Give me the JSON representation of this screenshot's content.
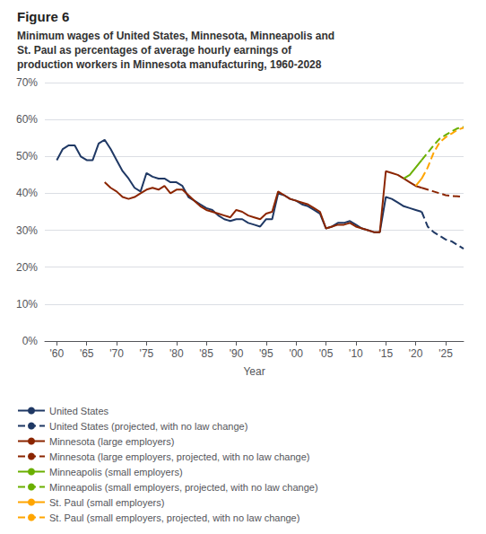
{
  "chart_data": {
    "type": "line",
    "title": "Figure 6",
    "subtitle": "Minimum wages of United States, Minnesota, Minneapolis and\nSt. Paul as percentages of average hourly earnings of\nproduction workers in Minnesota manufacturing, 1960-2028",
    "xlabel": "Year",
    "xlim": [
      1958,
      2028
    ],
    "xticks": [
      {
        "value": 1960,
        "label": "'60"
      },
      {
        "value": 1965,
        "label": "'65"
      },
      {
        "value": 1970,
        "label": "'70"
      },
      {
        "value": 1975,
        "label": "'75"
      },
      {
        "value": 1980,
        "label": "'80"
      },
      {
        "value": 1985,
        "label": "'85"
      },
      {
        "value": 1990,
        "label": "'90"
      },
      {
        "value": 1995,
        "label": "'95"
      },
      {
        "value": 2000,
        "label": "'00"
      },
      {
        "value": 2005,
        "label": "'05"
      },
      {
        "value": 2010,
        "label": "'10"
      },
      {
        "value": 2015,
        "label": "'15"
      },
      {
        "value": 2020,
        "label": "'20"
      },
      {
        "value": 2025,
        "label": "'25"
      }
    ],
    "ylim": [
      0,
      0.7
    ],
    "yticks": [
      {
        "value": 0.0,
        "label": "0%"
      },
      {
        "value": 0.1,
        "label": "10%"
      },
      {
        "value": 0.2,
        "label": "20%"
      },
      {
        "value": 0.3,
        "label": "30%"
      },
      {
        "value": 0.4,
        "label": "40%"
      },
      {
        "value": 0.5,
        "label": "50%"
      },
      {
        "value": 0.6,
        "label": "60%"
      },
      {
        "value": 0.7,
        "label": "70%"
      }
    ],
    "grid": true,
    "legend": "bottom",
    "series": [
      {
        "name": "United States",
        "color": "#1F3864",
        "line_style": "solid",
        "x": [
          1960,
          1961,
          1962,
          1963,
          1964,
          1965,
          1966,
          1967,
          1968,
          1969,
          1970,
          1971,
          1972,
          1973,
          1974,
          1975,
          1976,
          1977,
          1978,
          1979,
          1980,
          1981,
          1982,
          1983,
          1984,
          1985,
          1986,
          1987,
          1988,
          1989,
          1990,
          1991,
          1992,
          1993,
          1994,
          1995,
          1996,
          1997,
          1998,
          1999,
          2000,
          2001,
          2002,
          2003,
          2004,
          2005,
          2006,
          2007,
          2008,
          2009,
          2010,
          2011,
          2012,
          2013,
          2014,
          2015,
          2016,
          2017,
          2018,
          2019,
          2020,
          2021
        ],
        "values": [
          0.49,
          0.52,
          0.53,
          0.53,
          0.5,
          0.49,
          0.49,
          0.535,
          0.545,
          0.52,
          0.49,
          0.46,
          0.44,
          0.415,
          0.405,
          0.455,
          0.445,
          0.44,
          0.44,
          0.43,
          0.43,
          0.42,
          0.39,
          0.38,
          0.37,
          0.36,
          0.355,
          0.34,
          0.33,
          0.325,
          0.33,
          0.33,
          0.32,
          0.315,
          0.31,
          0.33,
          0.33,
          0.4,
          0.395,
          0.385,
          0.38,
          0.37,
          0.365,
          0.355,
          0.345,
          0.305,
          0.31,
          0.32,
          0.32,
          0.325,
          0.315,
          0.305,
          0.3,
          0.295,
          0.295,
          0.39,
          0.385,
          0.375,
          0.365,
          0.36,
          0.355,
          0.35
        ]
      },
      {
        "name": "United States (projected, with no law change)",
        "color": "#1F3864",
        "line_style": "dashed",
        "x": [
          2021,
          2022,
          2023,
          2024,
          2025,
          2026,
          2027,
          2028
        ],
        "values": [
          0.35,
          0.31,
          0.295,
          0.285,
          0.275,
          0.27,
          0.26,
          0.25
        ]
      },
      {
        "name": "Minnesota (large employers)",
        "color": "#8B2500",
        "line_style": "solid",
        "x": [
          1968,
          1969,
          1970,
          1971,
          1972,
          1973,
          1974,
          1975,
          1976,
          1977,
          1978,
          1979,
          1980,
          1981,
          1982,
          1983,
          1984,
          1985,
          1986,
          1987,
          1988,
          1989,
          1990,
          1991,
          1992,
          1993,
          1994,
          1995,
          1996,
          1997,
          1998,
          1999,
          2000,
          2001,
          2002,
          2003,
          2004,
          2005,
          2006,
          2007,
          2008,
          2009,
          2010,
          2011,
          2012,
          2013,
          2014,
          2015,
          2016,
          2017,
          2018,
          2019,
          2020,
          2021
        ],
        "values": [
          0.43,
          0.415,
          0.405,
          0.39,
          0.385,
          0.39,
          0.4,
          0.41,
          0.415,
          0.41,
          0.42,
          0.4,
          0.41,
          0.41,
          0.395,
          0.38,
          0.365,
          0.355,
          0.35,
          0.345,
          0.34,
          0.335,
          0.355,
          0.35,
          0.34,
          0.335,
          0.33,
          0.345,
          0.35,
          0.405,
          0.395,
          0.385,
          0.38,
          0.375,
          0.37,
          0.36,
          0.35,
          0.305,
          0.31,
          0.315,
          0.315,
          0.32,
          0.31,
          0.305,
          0.3,
          0.295,
          0.295,
          0.46,
          0.455,
          0.45,
          0.44,
          0.43,
          0.42,
          0.415
        ]
      },
      {
        "name": "Minnesota (large employers, projected, with no law change)",
        "color": "#8B2500",
        "line_style": "dashed",
        "x": [
          2021,
          2022,
          2023,
          2024,
          2025,
          2026,
          2027,
          2028
        ],
        "values": [
          0.415,
          0.41,
          0.405,
          0.4,
          0.395,
          0.393,
          0.392,
          0.39
        ]
      },
      {
        "name": "Minneapolis (small employers)",
        "color": "#6AAF00",
        "line_style": "solid",
        "x": [
          2018,
          2019,
          2020,
          2021
        ],
        "values": [
          0.44,
          0.45,
          0.47,
          0.49
        ]
      },
      {
        "name": "Minneapolis (small employers, projected, with no law change)",
        "color": "#6AAF00",
        "line_style": "dashed",
        "x": [
          2021,
          2022,
          2023,
          2024,
          2025,
          2026,
          2027,
          2028
        ],
        "values": [
          0.49,
          0.51,
          0.53,
          0.548,
          0.558,
          0.568,
          0.576,
          0.58
        ]
      },
      {
        "name": "St. Paul (small employers)",
        "color": "#FFA500",
        "line_style": "solid",
        "x": [
          2020,
          2021
        ],
        "values": [
          0.42,
          0.44
        ]
      },
      {
        "name": "St. Paul (small employers, projected, with no law change)",
        "color": "#FFA500",
        "line_style": "dashed",
        "x": [
          2021,
          2022,
          2023,
          2024,
          2025,
          2026,
          2027,
          2028
        ],
        "values": [
          0.44,
          0.47,
          0.51,
          0.538,
          0.552,
          0.562,
          0.572,
          0.578
        ]
      }
    ]
  }
}
